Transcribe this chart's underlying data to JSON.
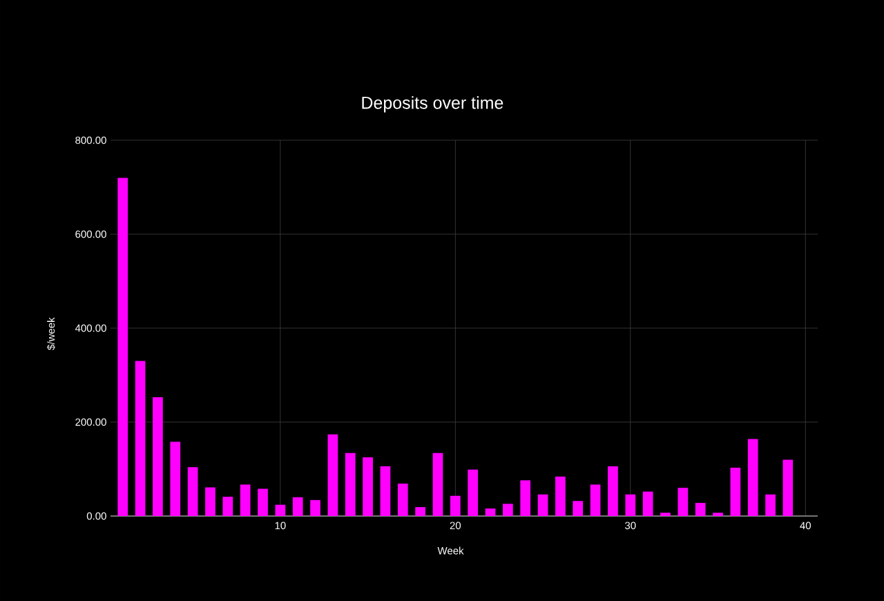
{
  "chart_data": {
    "type": "bar",
    "title": "Deposits over time",
    "xlabel": "Week",
    "ylabel": "$/week",
    "x": [
      1,
      2,
      3,
      4,
      5,
      6,
      7,
      8,
      9,
      10,
      11,
      12,
      13,
      14,
      15,
      16,
      17,
      18,
      19,
      20,
      21,
      22,
      23,
      24,
      25,
      26,
      27,
      28,
      29,
      30,
      31,
      32,
      33,
      34,
      35,
      36,
      37,
      38,
      39
    ],
    "values": [
      720,
      330,
      253,
      158,
      104,
      61,
      41,
      67,
      58,
      24,
      40,
      34,
      174,
      134,
      125,
      106,
      69,
      19,
      134,
      43,
      99,
      16,
      26,
      76,
      46,
      84,
      32,
      67,
      106,
      46,
      52,
      7,
      60,
      28,
      7,
      103,
      164,
      46,
      120
    ],
    "color": "#ff00ff",
    "xlim": [
      0.3,
      40.7
    ],
    "xticks": [
      10,
      20,
      30,
      40
    ],
    "ylim": [
      0,
      800
    ],
    "yticks": [
      {
        "value": 0,
        "label": "0.00"
      },
      {
        "value": 200,
        "label": "200.00"
      },
      {
        "value": 400,
        "label": "400.00"
      },
      {
        "value": 600,
        "label": "600.00"
      },
      {
        "value": 800,
        "label": "800.00"
      }
    ],
    "grid": true
  }
}
